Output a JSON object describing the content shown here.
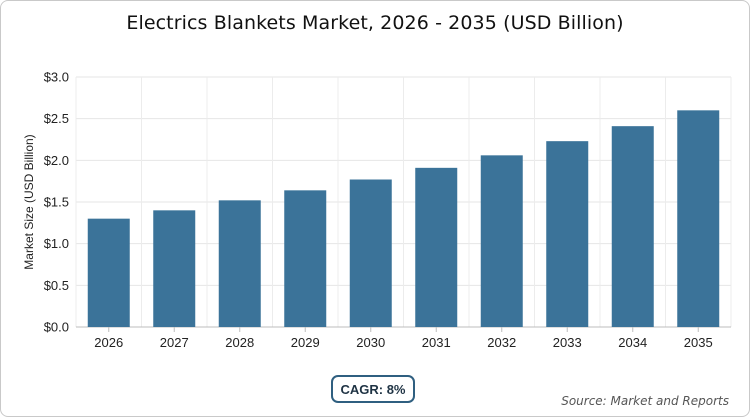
{
  "chart_data": {
    "type": "bar",
    "title": "Electrics Blankets Market, 2026 - 2035 (USD Billion)",
    "ylabel": "Market Size (USD Billion)",
    "xlabel": "",
    "categories": [
      "2026",
      "2027",
      "2028",
      "2029",
      "2030",
      "2031",
      "2032",
      "2033",
      "2034",
      "2035"
    ],
    "values": [
      1.3,
      1.4,
      1.52,
      1.64,
      1.77,
      1.91,
      2.06,
      2.23,
      2.41,
      2.6
    ],
    "ylim": [
      0,
      3.0
    ],
    "yticks": [
      0,
      0.5,
      1.0,
      1.5,
      2.0,
      2.5,
      3.0
    ],
    "ytick_labels": [
      "$0.0",
      "$0.5",
      "$1.0",
      "$1.5",
      "$2.0",
      "$2.5",
      "$3.0"
    ],
    "grid": true,
    "bar_color": "#3b7399"
  },
  "footer": {
    "cagr_label": "CAGR: 8%",
    "source": "Source: Market and Reports"
  }
}
